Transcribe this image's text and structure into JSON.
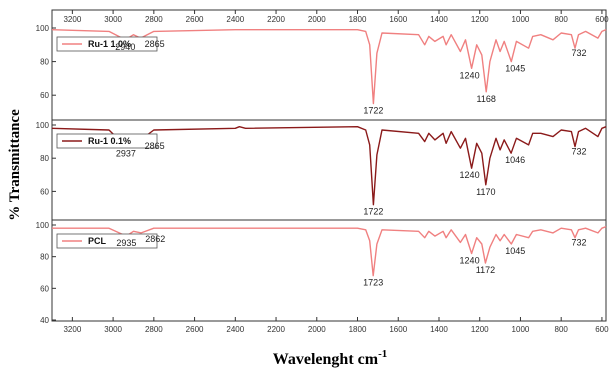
{
  "chart_data": {
    "type": "line",
    "xlabel": "Wavelenght cm",
    "xlabel_superscript": "-1",
    "ylabel": "% Transmittance",
    "xlim": [
      3300,
      580
    ],
    "ylim": [
      40,
      100
    ],
    "top_ticks": [
      "3200",
      "3000",
      "2800",
      "2600",
      "2400",
      "2200",
      "2000",
      "1800",
      "1600",
      "1400",
      "1200",
      "1000",
      "800",
      "600"
    ],
    "bottom_ticks": [
      "3200",
      "3000",
      "2800",
      "2600",
      "2400",
      "2200",
      "2000",
      "1800",
      "1600",
      "1400",
      "1200",
      "1000",
      "800",
      "600"
    ],
    "series": [
      {
        "name": "Ru-1 1.0%",
        "color": "#f08080",
        "y_ticks": [
          "100",
          "80",
          "60"
        ],
        "peaks": [
          {
            "x": 2940,
            "label": "2940"
          },
          {
            "x": 2865,
            "label": "2865"
          },
          {
            "x": 1722,
            "label": "1722"
          },
          {
            "x": 1240,
            "label": "1240"
          },
          {
            "x": 1168,
            "label": "1168"
          },
          {
            "x": 1045,
            "label": "1045"
          },
          {
            "x": 732,
            "label": "732"
          }
        ],
        "profile": [
          [
            3300,
            99
          ],
          [
            3020,
            98
          ],
          [
            2940,
            93
          ],
          [
            2900,
            96
          ],
          [
            2865,
            94
          ],
          [
            2800,
            98
          ],
          [
            2400,
            99
          ],
          [
            1800,
            99
          ],
          [
            1760,
            98
          ],
          [
            1740,
            90
          ],
          [
            1722,
            55
          ],
          [
            1705,
            85
          ],
          [
            1680,
            97
          ],
          [
            1500,
            96
          ],
          [
            1470,
            90
          ],
          [
            1450,
            95
          ],
          [
            1420,
            92
          ],
          [
            1380,
            95
          ],
          [
            1365,
            90
          ],
          [
            1340,
            96
          ],
          [
            1295,
            86
          ],
          [
            1270,
            93
          ],
          [
            1240,
            76
          ],
          [
            1215,
            90
          ],
          [
            1190,
            84
          ],
          [
            1168,
            62
          ],
          [
            1150,
            80
          ],
          [
            1120,
            93
          ],
          [
            1100,
            86
          ],
          [
            1080,
            92
          ],
          [
            1045,
            80
          ],
          [
            1020,
            92
          ],
          [
            960,
            88
          ],
          [
            940,
            95
          ],
          [
            900,
            96
          ],
          [
            840,
            93
          ],
          [
            800,
            97
          ],
          [
            750,
            96
          ],
          [
            732,
            88
          ],
          [
            715,
            96
          ],
          [
            680,
            98
          ],
          [
            620,
            94
          ],
          [
            600,
            98
          ],
          [
            580,
            99
          ]
        ]
      },
      {
        "name": "Ru-1 0.1%",
        "color": "#8b1a1a",
        "y_ticks": [
          "100",
          "80",
          "60"
        ],
        "peaks": [
          {
            "x": 2937,
            "label": "2937"
          },
          {
            "x": 2865,
            "label": "2865"
          },
          {
            "x": 1722,
            "label": "1722"
          },
          {
            "x": 1240,
            "label": "1240"
          },
          {
            "x": 1170,
            "label": "1170"
          },
          {
            "x": 1046,
            "label": "1046"
          },
          {
            "x": 732,
            "label": "732"
          }
        ],
        "profile": [
          [
            3300,
            98
          ],
          [
            3020,
            97
          ],
          [
            2937,
            87
          ],
          [
            2900,
            93
          ],
          [
            2865,
            91
          ],
          [
            2800,
            97
          ],
          [
            2400,
            98
          ],
          [
            2380,
            99
          ],
          [
            2350,
            98
          ],
          [
            1800,
            99
          ],
          [
            1760,
            97
          ],
          [
            1740,
            88
          ],
          [
            1722,
            52
          ],
          [
            1705,
            82
          ],
          [
            1680,
            97
          ],
          [
            1500,
            95
          ],
          [
            1470,
            90
          ],
          [
            1450,
            95
          ],
          [
            1420,
            91
          ],
          [
            1380,
            95
          ],
          [
            1365,
            89
          ],
          [
            1340,
            96
          ],
          [
            1295,
            86
          ],
          [
            1270,
            92
          ],
          [
            1240,
            74
          ],
          [
            1215,
            89
          ],
          [
            1190,
            83
          ],
          [
            1170,
            64
          ],
          [
            1150,
            80
          ],
          [
            1120,
            92
          ],
          [
            1100,
            85
          ],
          [
            1080,
            91
          ],
          [
            1046,
            83
          ],
          [
            1020,
            92
          ],
          [
            960,
            88
          ],
          [
            940,
            95
          ],
          [
            900,
            95
          ],
          [
            840,
            93
          ],
          [
            800,
            97
          ],
          [
            750,
            96
          ],
          [
            732,
            87
          ],
          [
            715,
            96
          ],
          [
            680,
            98
          ],
          [
            620,
            93
          ],
          [
            600,
            98
          ],
          [
            580,
            99
          ]
        ]
      },
      {
        "name": "PCL",
        "color": "#f08080",
        "y_ticks": [
          "100",
          "80",
          "60",
          "40"
        ],
        "peaks": [
          {
            "x": 2935,
            "label": "2935"
          },
          {
            "x": 2862,
            "label": "2862"
          },
          {
            "x": 1723,
            "label": "1723"
          },
          {
            "x": 1240,
            "label": "1240"
          },
          {
            "x": 1172,
            "label": "1172"
          },
          {
            "x": 1045,
            "label": "1045"
          },
          {
            "x": 732,
            "label": "732"
          }
        ],
        "profile": [
          [
            3300,
            98
          ],
          [
            3020,
            98
          ],
          [
            2935,
            93
          ],
          [
            2900,
            96
          ],
          [
            2862,
            95
          ],
          [
            2800,
            98
          ],
          [
            2400,
            98
          ],
          [
            1800,
            98
          ],
          [
            1760,
            97
          ],
          [
            1740,
            90
          ],
          [
            1723,
            68
          ],
          [
            1705,
            88
          ],
          [
            1680,
            97
          ],
          [
            1500,
            96
          ],
          [
            1470,
            92
          ],
          [
            1450,
            96
          ],
          [
            1420,
            93
          ],
          [
            1380,
            96
          ],
          [
            1365,
            92
          ],
          [
            1340,
            97
          ],
          [
            1295,
            89
          ],
          [
            1270,
            94
          ],
          [
            1240,
            82
          ],
          [
            1215,
            92
          ],
          [
            1190,
            88
          ],
          [
            1172,
            76
          ],
          [
            1150,
            86
          ],
          [
            1120,
            94
          ],
          [
            1100,
            90
          ],
          [
            1080,
            94
          ],
          [
            1045,
            88
          ],
          [
            1020,
            94
          ],
          [
            960,
            92
          ],
          [
            940,
            96
          ],
          [
            900,
            97
          ],
          [
            840,
            95
          ],
          [
            800,
            98
          ],
          [
            750,
            97
          ],
          [
            732,
            92
          ],
          [
            715,
            97
          ],
          [
            680,
            98
          ],
          [
            620,
            95
          ],
          [
            600,
            98
          ],
          [
            580,
            99
          ]
        ]
      }
    ]
  }
}
